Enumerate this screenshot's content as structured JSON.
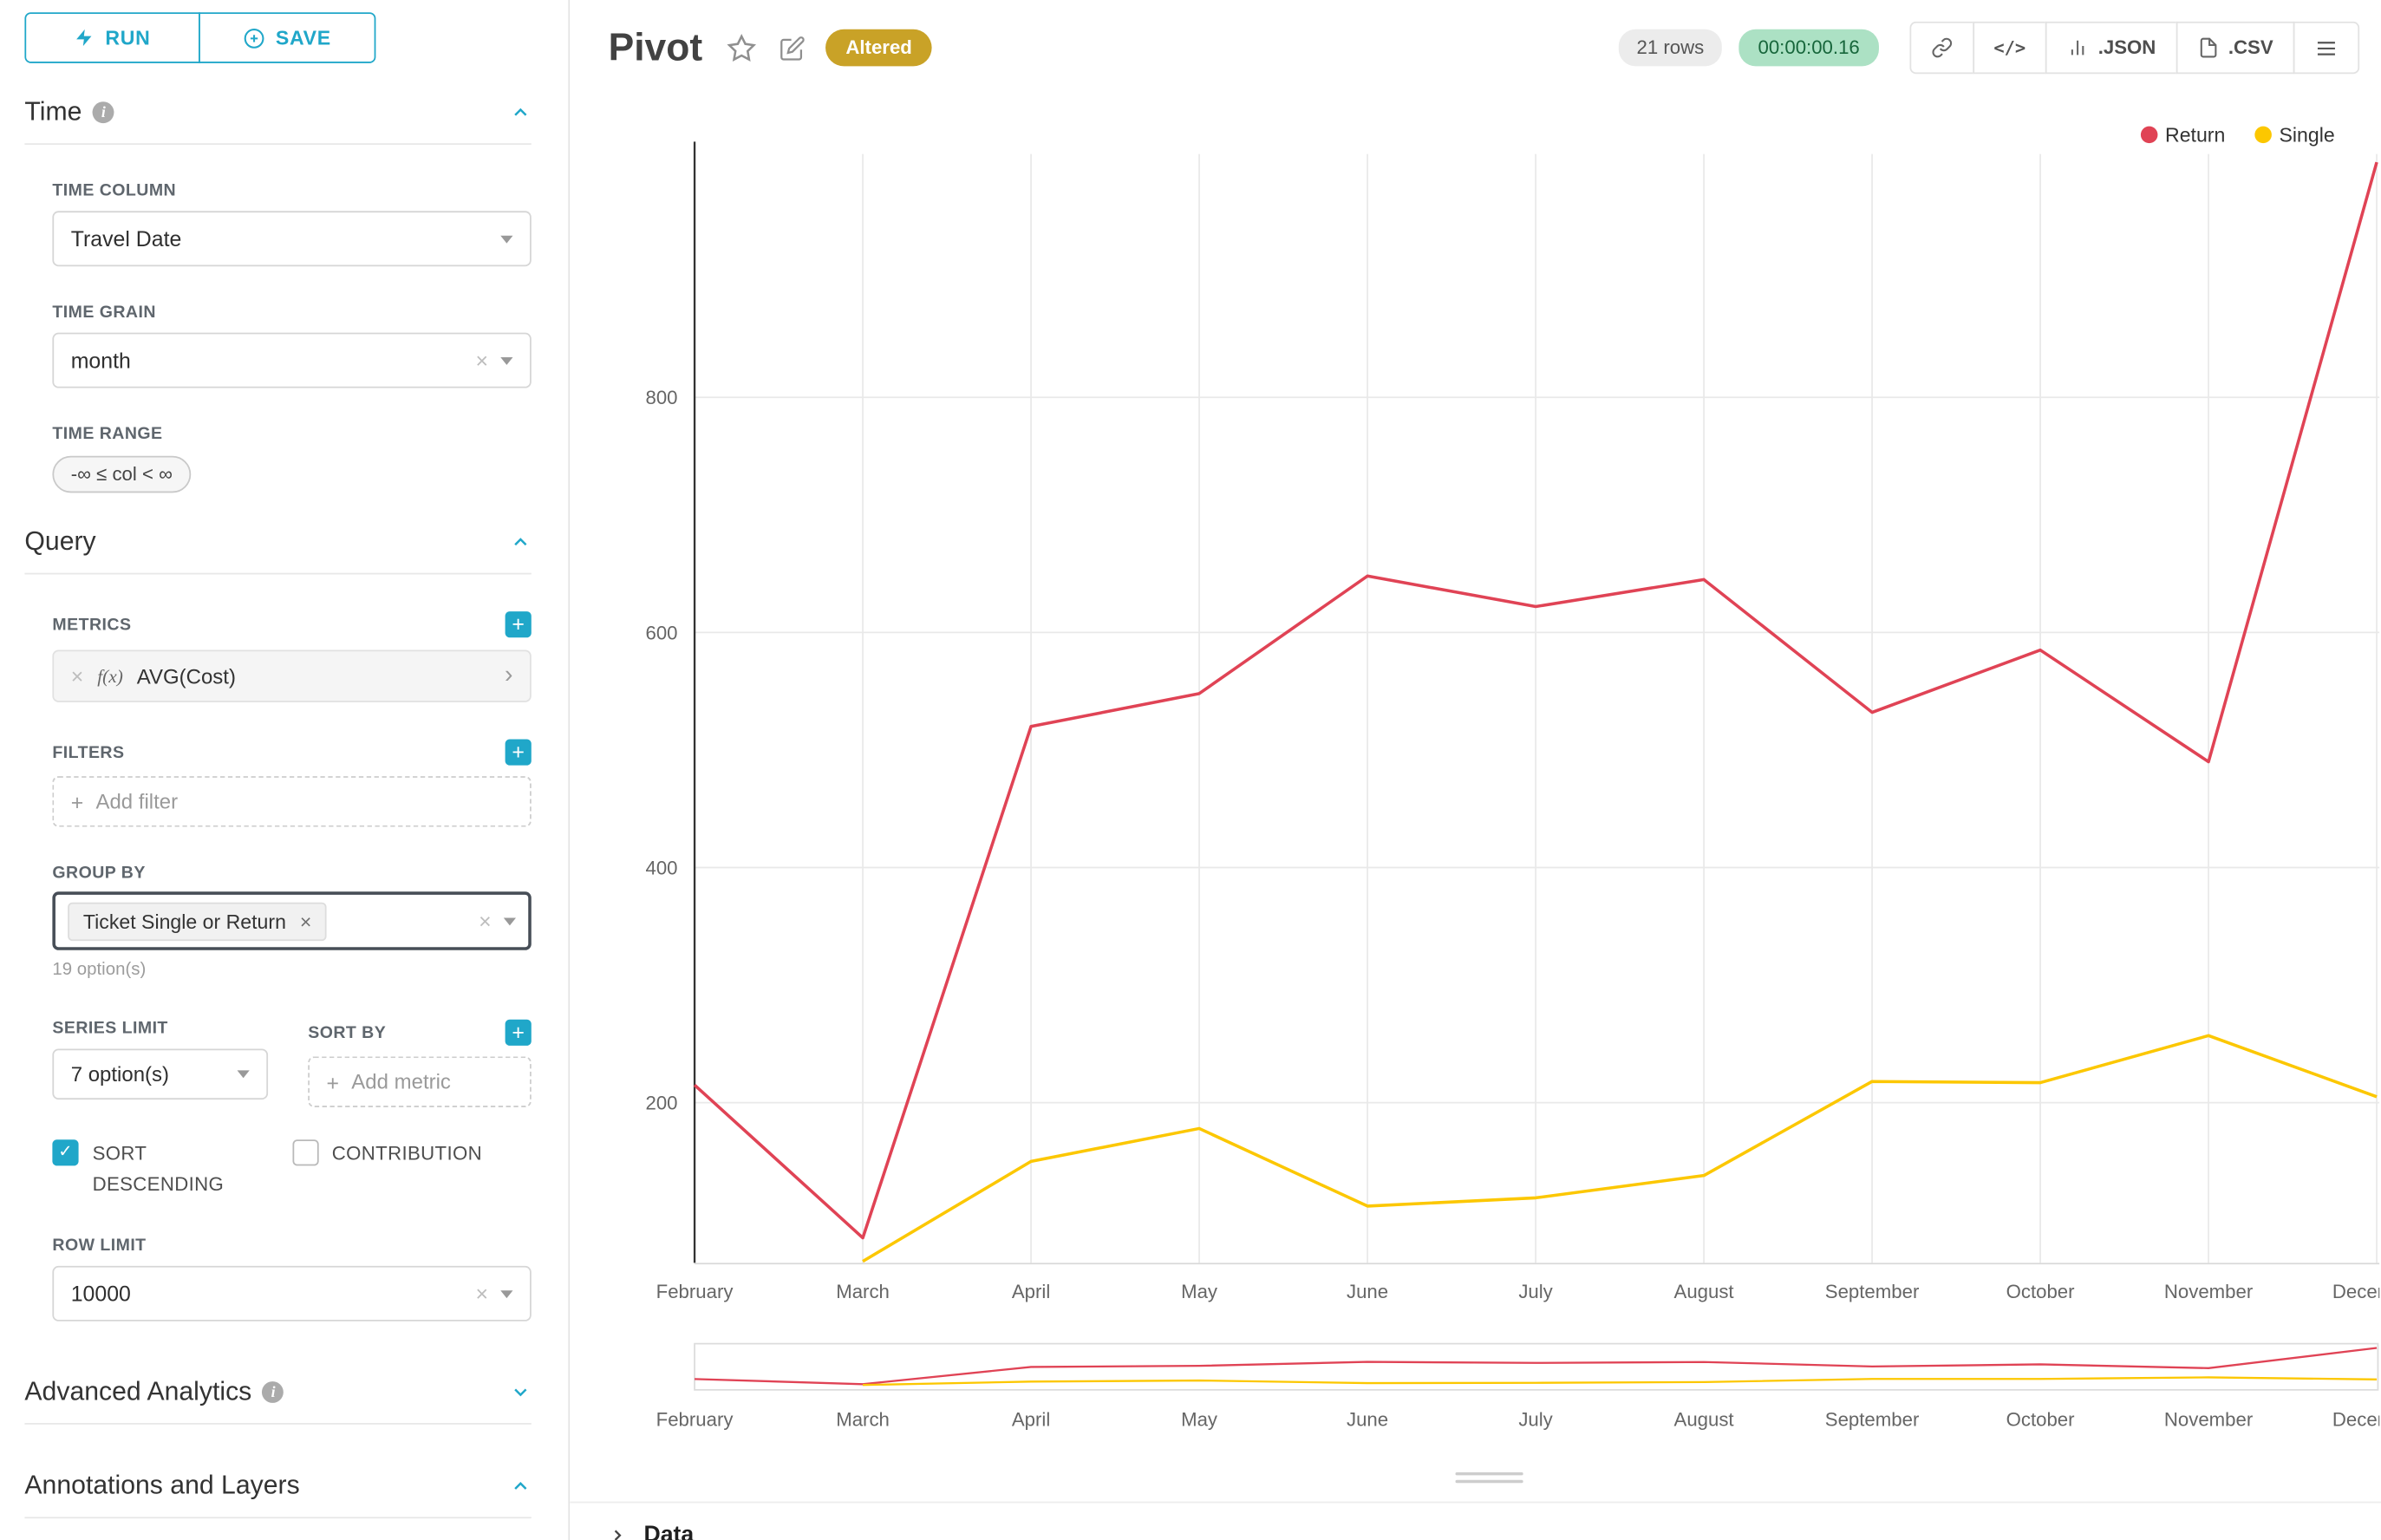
{
  "colors": {
    "accent": "#20A7C9",
    "altered_bg": "#C9A227",
    "timer_bg": "#ACE1C4",
    "timer_text": "#17663B",
    "rows_bg": "#ECECEC",
    "rows_text": "#555555",
    "grid": "#E9E9E9",
    "axis": "#333333"
  },
  "toolbar": {
    "run_label": "RUN",
    "save_label": "SAVE"
  },
  "sections": {
    "time": {
      "title": "Time",
      "time_column": {
        "label": "TIME COLUMN",
        "value": "Travel Date"
      },
      "time_grain": {
        "label": "TIME GRAIN",
        "value": "month"
      },
      "time_range": {
        "label": "TIME RANGE",
        "value": "-∞ ≤ col < ∞"
      }
    },
    "query": {
      "title": "Query",
      "metrics": {
        "label": "METRICS",
        "fx": "f(x)",
        "value": "AVG(Cost)"
      },
      "filters": {
        "label": "FILTERS",
        "placeholder": "Add filter"
      },
      "group_by": {
        "label": "GROUP BY",
        "value": "Ticket Single or Return",
        "hint": "19 option(s)"
      },
      "series_limit": {
        "label": "SERIES LIMIT",
        "value": "7 option(s)"
      },
      "sort_by": {
        "label": "SORT BY",
        "placeholder": "Add metric"
      },
      "sort_descending_label": "SORT DESCENDING",
      "contribution_label": "CONTRIBUTION",
      "row_limit": {
        "label": "ROW LIMIT",
        "value": "10000"
      }
    },
    "advanced_analytics": {
      "title": "Advanced Analytics"
    },
    "annotations": {
      "title": "Annotations and Layers"
    }
  },
  "header": {
    "title": "Pivot",
    "altered_label": "Altered",
    "rows_badge": "21 rows",
    "timer": "00:00:00.16",
    "code_glyph": "</>",
    "json_label": ".JSON",
    "csv_label": ".CSV"
  },
  "data_panel": {
    "label": "Data"
  },
  "chart_data": {
    "type": "line",
    "title": "",
    "xlabel": "",
    "ylabel": "",
    "x": [
      "February",
      "March",
      "April",
      "May",
      "June",
      "July",
      "August",
      "September",
      "October",
      "November",
      "December"
    ],
    "series": [
      {
        "name": "Return",
        "color": "#E04355",
        "values": [
          215,
          85,
          520,
          548,
          648,
          622,
          645,
          532,
          585,
          490,
          1000
        ]
      },
      {
        "name": "Single",
        "color": "#FCC700",
        "values": [
          null,
          65,
          150,
          178,
          112,
          119,
          138,
          218,
          217,
          257,
          205
        ]
      }
    ],
    "yticks": [
      200,
      400,
      600,
      800
    ],
    "ylim": [
      60,
      1010
    ],
    "grid": true,
    "legend_position": "top-right",
    "has_mini_preview": true
  }
}
